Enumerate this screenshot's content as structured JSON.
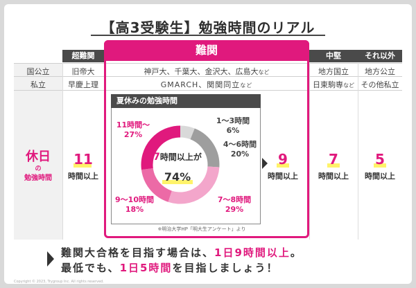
{
  "title": "【高3受験生】勉強時間のリアル",
  "columns": {
    "choNankan": "超難関",
    "nankan": "難関",
    "chuken": "中堅",
    "sonota": "それ以外"
  },
  "rows": {
    "kokukoritsu": {
      "label": "国公立",
      "choNankan": "旧帝大",
      "nankan": "神戸大、千葉大、金沢大、広島大",
      "nankan_suffix": "など",
      "chuken": "地方国立",
      "sonota": "地方公立"
    },
    "shiritsu": {
      "label": "私立",
      "choNankan": "早慶上理",
      "nankan": "GMARCH、関関同立",
      "nankan_suffix": "など",
      "chuken": "日東駒専",
      "chuken_suffix": "など",
      "sonota": "その他私立"
    }
  },
  "holiday": {
    "label_main": "休日",
    "label_no": "の",
    "label_sub": "勉強時間",
    "unit": "時間以上",
    "choNankan": "11",
    "nankan": "9",
    "chuken": "7",
    "sonota": "5"
  },
  "survey": {
    "heading": "夏休みの勉強時間",
    "slices": [
      {
        "label": "1〜3時間",
        "pct": "6%",
        "value": 6,
        "color": "#d9d9d9"
      },
      {
        "label": "4〜6時間",
        "pct": "20%",
        "value": 20,
        "color": "#9e9e9e"
      },
      {
        "label": "7〜8時間",
        "pct": "29%",
        "value": 29,
        "color": "#f3a6cb"
      },
      {
        "label": "9〜10時間",
        "pct": "18%",
        "value": 18,
        "color": "#ec6aa6"
      },
      {
        "label": "11時間〜",
        "pct": "27%",
        "value": 27,
        "color": "#e0197d"
      }
    ],
    "center_prefix": "7",
    "center_suffix": "時間以上が",
    "center_pct": "74%",
    "source": "※明治大学HP「明大生アンケート」より"
  },
  "footer": {
    "line1_a": "難関大合格を目指す場合は、",
    "line1_b": "1日9時間以上",
    "line1_c": "。",
    "line2_a": "最低でも、",
    "line2_b": "1日5時間",
    "line2_c": "を目指しましょう！"
  },
  "copyright": "Copyright © 2023, Trygroup Inc. All rights reserved.",
  "colors": {
    "accent": "#e0197d",
    "dark": "#4a4a4a",
    "highlight": "#fff36a"
  }
}
